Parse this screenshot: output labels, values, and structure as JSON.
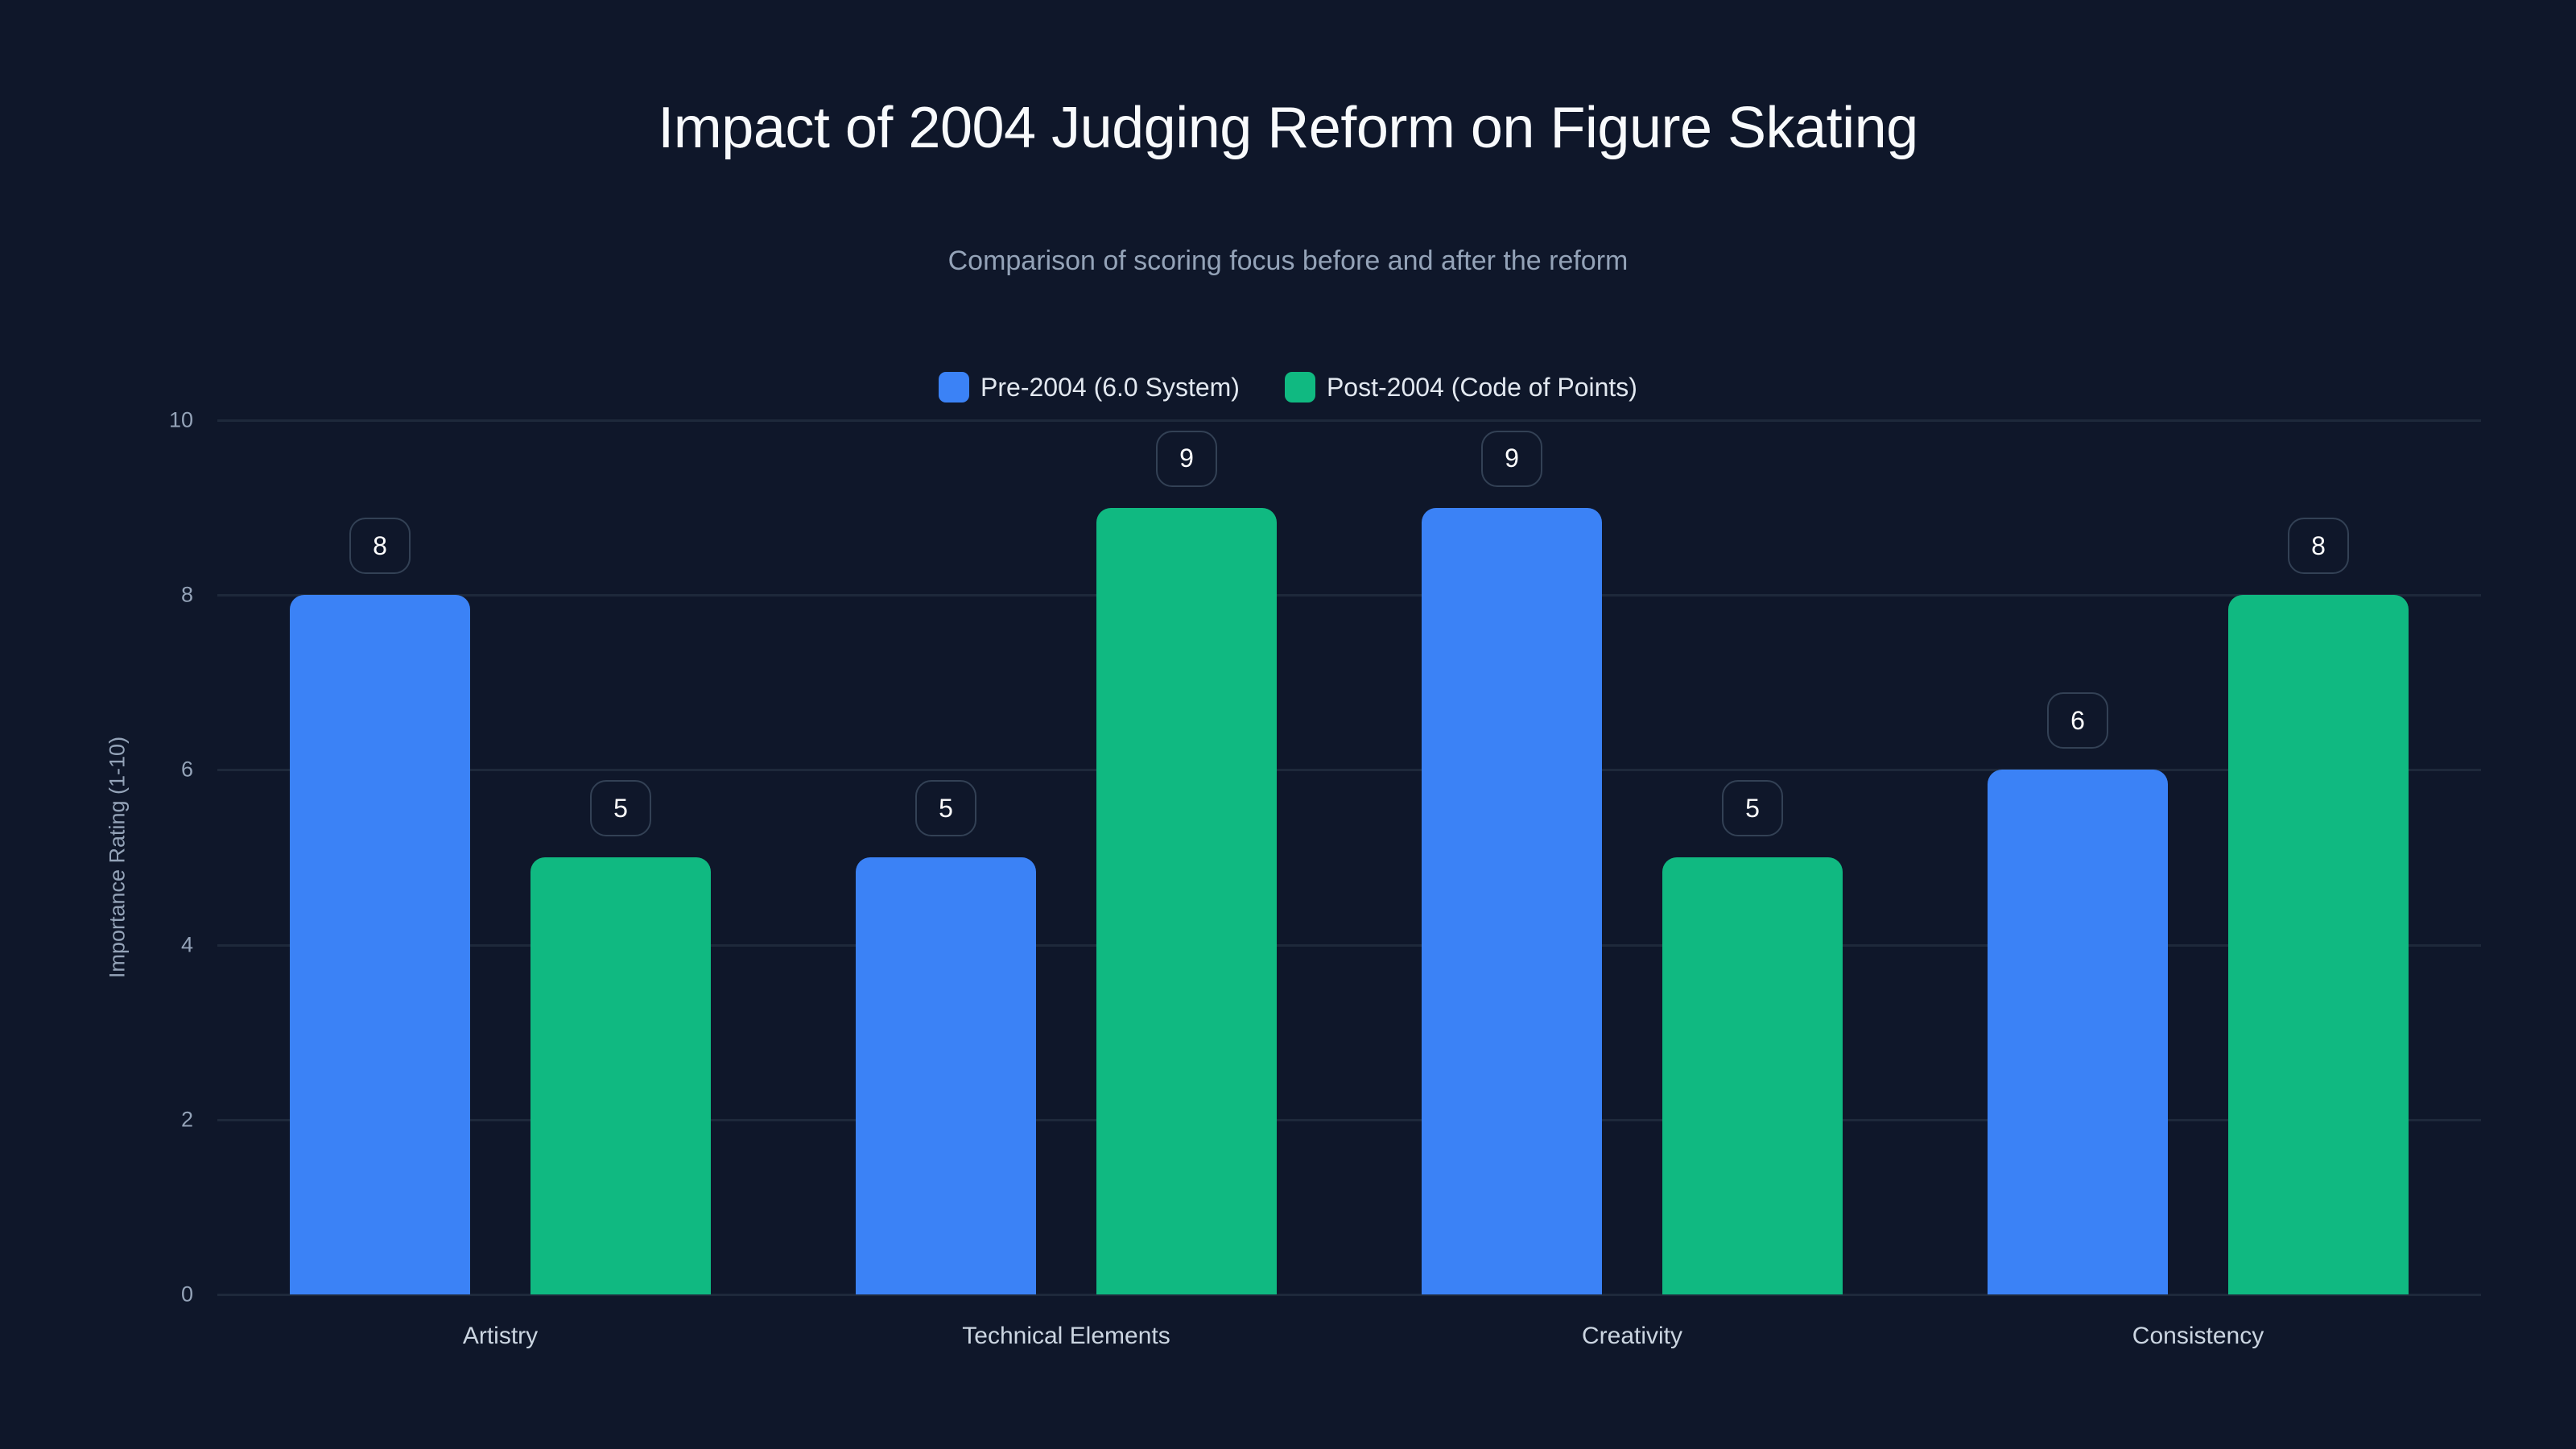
{
  "header": {
    "title": "Impact of 2004 Judging Reform on Figure Skating",
    "subtitle": "Comparison of scoring focus before and after the reform"
  },
  "legend": [
    {
      "label": "Pre-2004 (6.0 System)",
      "color": "#3B82F6"
    },
    {
      "label": "Post-2004 (Code of Points)",
      "color": "#10B981"
    }
  ],
  "axes": {
    "y_title": "Importance Rating (1-10)",
    "y_ticks": [
      "0",
      "2",
      "4",
      "6",
      "8",
      "10"
    ]
  },
  "categories": [
    "Artistry",
    "Technical Elements",
    "Creativity",
    "Consistency"
  ],
  "chart_data": {
    "type": "bar",
    "title": "Impact of 2004 Judging Reform on Figure Skating",
    "subtitle": "Comparison of scoring focus before and after the reform",
    "categories": [
      "Artistry",
      "Technical Elements",
      "Creativity",
      "Consistency"
    ],
    "series": [
      {
        "name": "Pre-2004 (6.0 System)",
        "color": "#3B82F6",
        "values": [
          8,
          5,
          9,
          6
        ]
      },
      {
        "name": "Post-2004 (Code of Points)",
        "color": "#10B981",
        "values": [
          5,
          9,
          5,
          8
        ]
      }
    ],
    "xlabel": "",
    "ylabel": "Importance Rating (1-10)",
    "ylim": [
      0,
      10
    ],
    "y_ticks": [
      0,
      2,
      4,
      6,
      8,
      10
    ],
    "grid": true,
    "legend_position": "top-center",
    "data_labels": true
  }
}
